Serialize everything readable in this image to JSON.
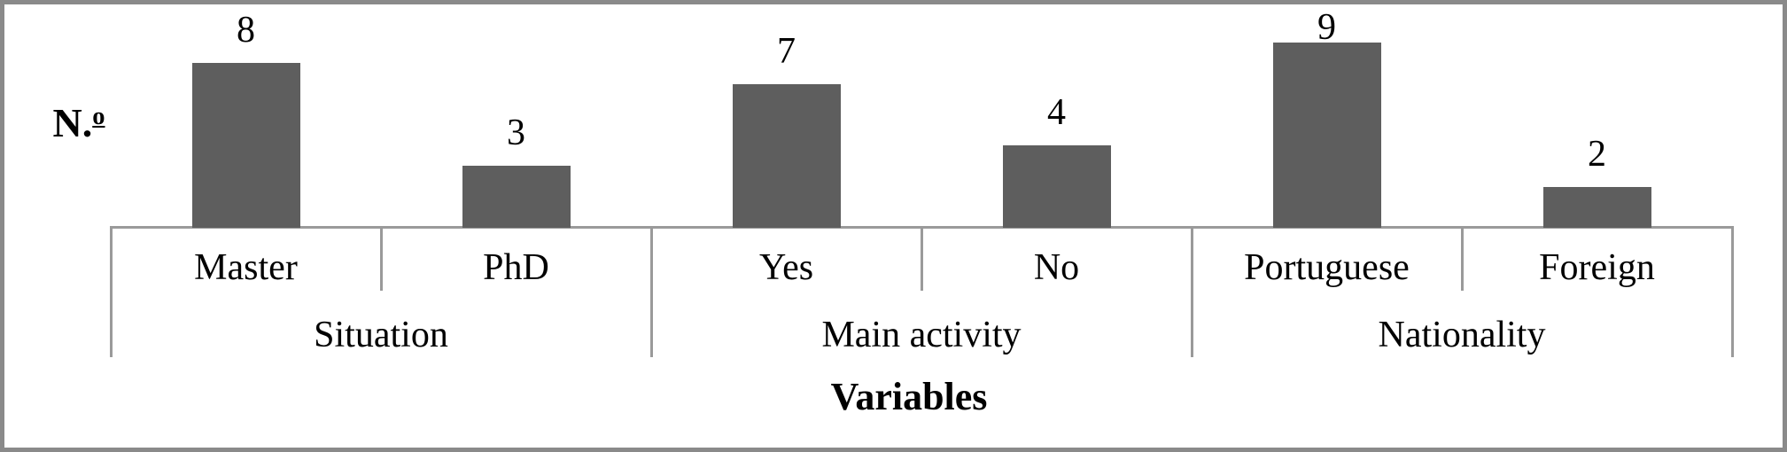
{
  "chart_data": {
    "type": "bar",
    "title": "",
    "ylabel": "N.º",
    "ylabel_parts": {
      "prefix": "N.",
      "ordinal": "o"
    },
    "xlabel": "Variables",
    "groups": [
      {
        "label": "Situation",
        "categories": [
          "Master",
          "PhD"
        ],
        "values": [
          8,
          3
        ]
      },
      {
        "label": "Main activity",
        "categories": [
          "Yes",
          "No"
        ],
        "values": [
          7,
          4
        ]
      },
      {
        "label": "Nationality",
        "categories": [
          "Portuguese",
          "Foreign"
        ],
        "values": [
          9,
          2
        ]
      }
    ],
    "categories": [
      "Master",
      "PhD",
      "Yes",
      "No",
      "Portuguese",
      "Foreign"
    ],
    "values": [
      8,
      3,
      7,
      4,
      9,
      2
    ],
    "ylim": [
      0,
      10
    ],
    "bar_color": "#5e5e5e",
    "axis_line_color": "#9a9a9a",
    "border_color": "#8a8a8a",
    "data_labels": "outside-end",
    "gridlines": false,
    "legend": "none"
  }
}
